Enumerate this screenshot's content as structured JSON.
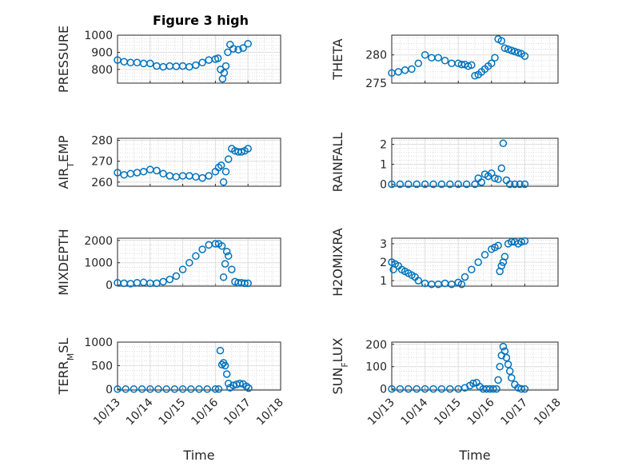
{
  "figure": {
    "title": "Figure 3 high"
  },
  "colors": {
    "marker": "#0072BD",
    "axis": "#262626"
  },
  "chart_data": [
    {
      "type": "scatter",
      "ylabel": "PRESSURE",
      "title": "Figure 3 high",
      "xlim": [
        13,
        18
      ],
      "ylim": [
        720,
        1000
      ],
      "yticks": [
        800,
        900,
        1000
      ],
      "xticklabels": [],
      "xlabel": "",
      "grid": true,
      "marker": "circle",
      "x": [
        13,
        13.2,
        13.4,
        13.6,
        13.8,
        14,
        14.2,
        14.4,
        14.6,
        14.8,
        15,
        15.2,
        15.4,
        15.6,
        15.8,
        16,
        16.08,
        16.16,
        16.22,
        16.27,
        16.32,
        16.38,
        16.45,
        16.55,
        16.7,
        16.85,
        17
      ],
      "y": [
        855,
        845,
        840,
        840,
        835,
        835,
        820,
        815,
        820,
        818,
        820,
        815,
        825,
        840,
        855,
        860,
        865,
        800,
        745,
        780,
        820,
        900,
        945,
        920,
        915,
        925,
        950
      ]
    },
    {
      "type": "scatter",
      "ylabel": "THETA",
      "xlim": [
        13,
        18
      ],
      "ylim": [
        275,
        283.5
      ],
      "yticks": [
        275,
        280
      ],
      "xticklabels": [],
      "xlabel": "",
      "grid": true,
      "marker": "circle",
      "x": [
        13,
        13.2,
        13.4,
        13.6,
        13.8,
        14,
        14.2,
        14.4,
        14.6,
        14.8,
        15,
        15.1,
        15.2,
        15.3,
        15.4,
        15.5,
        15.6,
        15.7,
        15.8,
        15.9,
        16,
        16.1,
        16.2,
        16.3,
        16.4,
        16.5,
        16.6,
        16.7,
        16.8,
        16.9,
        17
      ],
      "y": [
        276.8,
        277,
        277.3,
        277.5,
        278.5,
        280,
        279.5,
        279.5,
        279,
        278.5,
        278.5,
        278.3,
        278.3,
        278,
        278.2,
        276.3,
        276.5,
        277,
        277.5,
        278,
        278.5,
        279.5,
        282.8,
        282.5,
        281.2,
        281,
        280.8,
        280.6,
        280.4,
        280.2,
        279.8
      ]
    },
    {
      "type": "scatter",
      "ylabel": "AIR_TEMP",
      "xlim": [
        13,
        18
      ],
      "ylim": [
        258,
        281
      ],
      "yticks": [
        260,
        270,
        280
      ],
      "xticklabels": [],
      "xlabel": "",
      "grid": true,
      "marker": "circle",
      "x": [
        13,
        13.2,
        13.4,
        13.6,
        13.8,
        14,
        14.2,
        14.4,
        14.6,
        14.8,
        15,
        15.2,
        15.4,
        15.6,
        15.8,
        16,
        16.1,
        16.18,
        16.25,
        16.32,
        16.4,
        16.5,
        16.6,
        16.7,
        16.8,
        16.9,
        17
      ],
      "y": [
        264.5,
        263.5,
        264,
        264.5,
        265,
        266,
        265.5,
        264,
        263,
        262.5,
        263,
        263,
        262.5,
        262,
        263,
        265,
        267,
        268,
        260,
        265,
        271,
        276,
        275,
        274.5,
        274.5,
        275,
        276
      ]
    },
    {
      "type": "scatter",
      "ylabel": "RAINFALL",
      "xlim": [
        13,
        18
      ],
      "ylim": [
        -0.1,
        2.3
      ],
      "yticks": [
        0,
        1,
        2
      ],
      "xticklabels": [],
      "xlabel": "",
      "grid": true,
      "marker": "circle",
      "x": [
        13,
        13.25,
        13.5,
        13.75,
        14,
        14.25,
        14.5,
        14.75,
        15,
        15.25,
        15.5,
        15.6,
        15.7,
        15.8,
        15.9,
        16,
        16.1,
        16.2,
        16.3,
        16.35,
        16.45,
        16.55,
        16.7,
        16.85,
        17
      ],
      "y": [
        0,
        0,
        0,
        0,
        0,
        0,
        0,
        0,
        0,
        0,
        0,
        0.3,
        0.1,
        0.5,
        0.4,
        0.55,
        0.3,
        0.25,
        0.8,
        2.05,
        0.2,
        0,
        0,
        0,
        0
      ]
    },
    {
      "type": "scatter",
      "ylabel": "MIXDEPTH",
      "xlim": [
        13,
        18
      ],
      "ylim": [
        -50,
        2100
      ],
      "yticks": [
        0,
        1000,
        2000
      ],
      "xticklabels": [],
      "xlabel": "",
      "grid": true,
      "marker": "circle",
      "x": [
        13,
        13.2,
        13.4,
        13.6,
        13.8,
        14,
        14.2,
        14.4,
        14.6,
        14.8,
        15,
        15.2,
        15.4,
        15.6,
        15.8,
        16,
        16.1,
        16.2,
        16.25,
        16.3,
        16.35,
        16.4,
        16.5,
        16.6,
        16.7,
        16.8,
        16.9,
        17
      ],
      "y": [
        100,
        80,
        60,
        100,
        120,
        80,
        80,
        150,
        250,
        400,
        700,
        1000,
        1300,
        1600,
        1800,
        1850,
        1850,
        1750,
        350,
        950,
        1500,
        1300,
        700,
        150,
        100,
        100,
        80,
        80
      ]
    },
    {
      "type": "scatter",
      "ylabel": "H2OMIXRA",
      "xlim": [
        13,
        18
      ],
      "ylim": [
        0.7,
        3.3
      ],
      "yticks": [
        1,
        2,
        3
      ],
      "xticklabels": [],
      "xlabel": "",
      "grid": true,
      "marker": "circle",
      "x": [
        13,
        13.05,
        13.1,
        13.2,
        13.3,
        13.4,
        13.5,
        13.6,
        13.7,
        13.8,
        14,
        14.2,
        14.4,
        14.6,
        14.8,
        15,
        15.1,
        15.2,
        15.4,
        15.6,
        15.8,
        16,
        16.1,
        16.2,
        16.25,
        16.3,
        16.35,
        16.4,
        16.5,
        16.6,
        16.7,
        16.8,
        16.9,
        17
      ],
      "y": [
        2.0,
        1.6,
        1.9,
        1.8,
        1.6,
        1.5,
        1.4,
        1.3,
        1.2,
        1.0,
        0.85,
        0.8,
        0.8,
        0.85,
        0.8,
        0.9,
        0.8,
        1.2,
        1.6,
        2.0,
        2.4,
        2.7,
        2.8,
        2.9,
        1.5,
        1.8,
        2.0,
        2.3,
        3.0,
        3.1,
        3.1,
        3.0,
        3.1,
        3.15
      ]
    },
    {
      "type": "scatter",
      "ylabel": "TERR_MSL",
      "xlim": [
        13,
        18
      ],
      "ylim": [
        -20,
        1000
      ],
      "yticks": [
        0,
        500,
        1000
      ],
      "xticklabels": [
        "10/13",
        "10/14",
        "10/15",
        "10/16",
        "10/17",
        "10/18"
      ],
      "xlabel": "Time",
      "grid": true,
      "marker": "circle",
      "x": [
        13,
        13.25,
        13.5,
        13.75,
        14,
        14.25,
        14.5,
        14.75,
        15,
        15.25,
        15.5,
        15.75,
        16,
        16.1,
        16.15,
        16.2,
        16.25,
        16.3,
        16.35,
        16.4,
        16.45,
        16.55,
        16.65,
        16.75,
        16.85,
        16.95,
        17.02
      ],
      "y": [
        0,
        0,
        0,
        0,
        0,
        0,
        0,
        0,
        0,
        0,
        0,
        0,
        0,
        0,
        820,
        520,
        560,
        500,
        320,
        120,
        30,
        80,
        100,
        120,
        110,
        60,
        20
      ]
    },
    {
      "type": "scatter",
      "ylabel": "SUN_FLUX",
      "xlim": [
        13,
        18
      ],
      "ylim": [
        -5,
        210
      ],
      "yticks": [
        0,
        100,
        200
      ],
      "xticklabels": [
        "10/13",
        "10/14",
        "10/15",
        "10/16",
        "10/17",
        "10/18"
      ],
      "xlabel": "Time",
      "grid": true,
      "marker": "circle",
      "x": [
        13,
        13.25,
        13.5,
        13.75,
        14,
        14.25,
        14.5,
        14.75,
        15,
        15.2,
        15.35,
        15.45,
        15.55,
        15.65,
        15.75,
        15.85,
        15.95,
        16.05,
        16.15,
        16.2,
        16.25,
        16.3,
        16.35,
        16.4,
        16.45,
        16.5,
        16.55,
        16.6,
        16.7,
        16.8,
        16.9,
        17
      ],
      "y": [
        0,
        0,
        0,
        0,
        0,
        0,
        0,
        0,
        0,
        5,
        15,
        25,
        28,
        10,
        0,
        0,
        0,
        0,
        0,
        40,
        100,
        150,
        190,
        170,
        140,
        110,
        80,
        50,
        20,
        5,
        0,
        0
      ]
    }
  ]
}
